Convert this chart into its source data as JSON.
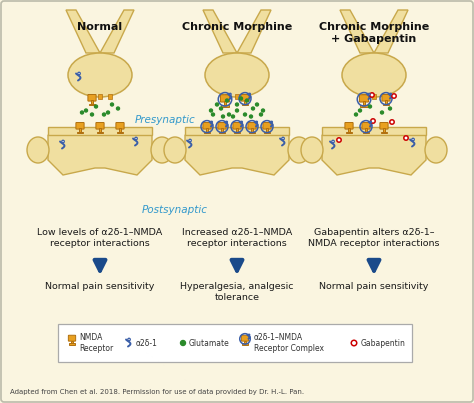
{
  "bg_color": "#faf5e0",
  "neuron_color": "#f0dfa0",
  "neuron_edge": "#c8a84b",
  "receptor_color": "#e8a020",
  "receptor_edge": "#b07010",
  "alpha2d_color": "#3a5ea8",
  "glutamate_color": "#2a8a2a",
  "gabapentin_color": "#cc0000",
  "arrow_color": "#1a4a8a",
  "text_color": "#1a1a1a",
  "presynaptic_color": "#3399cc",
  "postsynaptic_color": "#3399cc",
  "titles": [
    "Normal",
    "Chronic Morphine",
    "Chronic Morphine\n+ Gabapentin"
  ],
  "descriptions": [
    "Low levels of α2δ-1–NMDA\nreceptor interactions",
    "Increased α2δ-1–NMDA\nreceptor interactions",
    "Gabapentin alters α2δ-1–\nNMDA receptor interactions"
  ],
  "outcomes": [
    "Normal pain sensitivity",
    "Hyperalgesia, analgesic\ntolerance",
    "Normal pain sensitivity"
  ],
  "attribution": "Adapted from Chen et al. 2018. Permission for use of data provided by Dr. H.-L. Pan."
}
